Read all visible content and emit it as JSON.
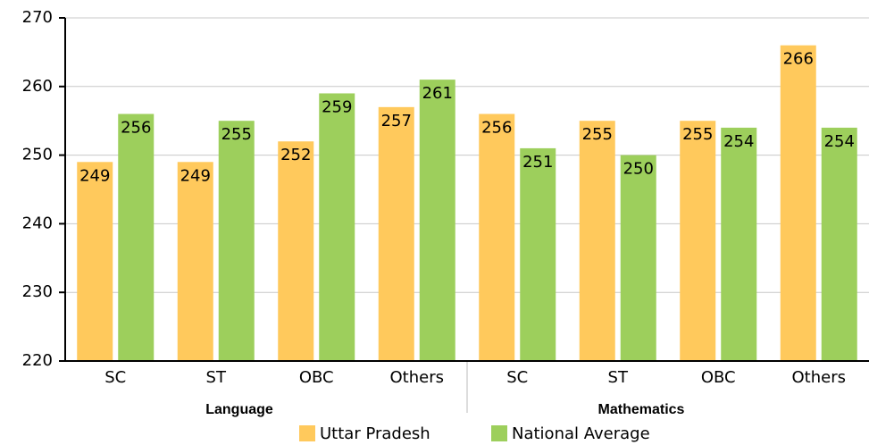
{
  "chart_data": {
    "type": "bar",
    "categories": [
      "SC",
      "ST",
      "OBC",
      "Others",
      "SC",
      "ST",
      "OBC",
      "Others"
    ],
    "groups": [
      "Language",
      "Mathematics"
    ],
    "series": [
      {
        "name": "Uttar Pradesh",
        "color": "#ffc95c",
        "values": [
          249,
          249,
          252,
          257,
          256,
          255,
          255,
          266
        ]
      },
      {
        "name": "National Average",
        "color": "#9dcf5c",
        "values": [
          256,
          255,
          259,
          261,
          251,
          250,
          254,
          254
        ]
      }
    ],
    "ylim": [
      220,
      270
    ],
    "yticks": [
      220,
      230,
      240,
      250,
      260,
      270
    ],
    "grid": true
  }
}
